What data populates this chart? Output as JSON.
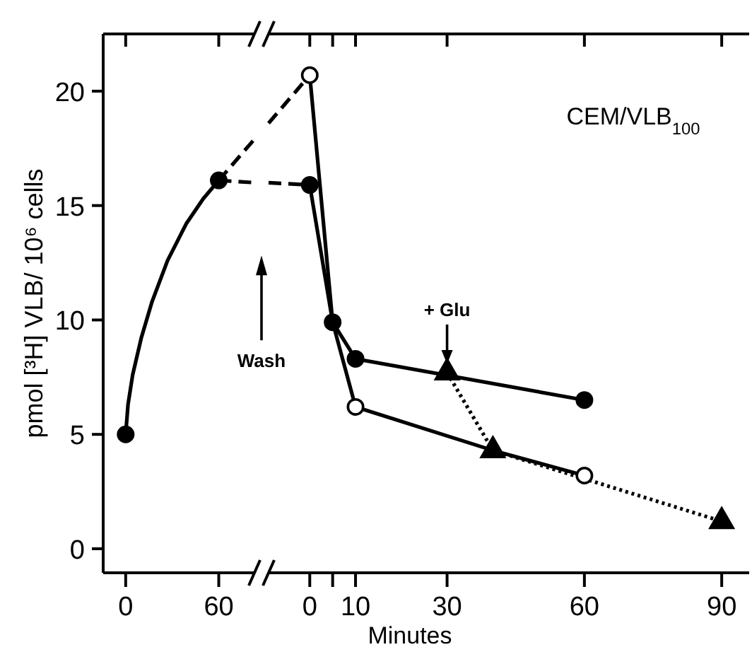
{
  "chart_data": [
    {
      "type": "line",
      "ylabel": "pmol [³H] VLB/ 10⁶ cells",
      "xlim": [
        -14.5,
        83
      ],
      "ylim": [
        -1.05,
        22.5
      ],
      "xticks": [
        0,
        60
      ],
      "yticks": [
        0,
        5,
        10,
        15,
        20
      ],
      "series": [
        {
          "color": "#000000",
          "marker": "none",
          "line_style": "solid",
          "x": [
            0,
            1.5,
            4.5,
            10,
            17,
            27,
            39,
            50,
            60
          ],
          "values": [
            5,
            6.3,
            7.6,
            9.2,
            10.8,
            12.6,
            14.2,
            15.3,
            16.1
          ]
        },
        {
          "type": "scatter",
          "color": "#000000",
          "marker": "circle",
          "x": [
            0,
            60
          ],
          "values": [
            5,
            16.1
          ]
        },
        {
          "color": "#000000",
          "line_style": "dashed",
          "x": [
            60,
            83
          ],
          "values": [
            16.1,
            17.9
          ]
        },
        {
          "color": "#000000",
          "line_style": "dashed",
          "x": [
            60,
            83
          ],
          "values": [
            16.1,
            16
          ]
        }
      ],
      "annotations": [
        "Wash"
      ]
    },
    {
      "type": "line",
      "xlabel": "Minutes",
      "title": "CEM/VLB$_{100}$",
      "tick_labels": "x",
      "xlim": [
        -9,
        96
      ],
      "ylim": [
        -1.05,
        22.5
      ],
      "xticks": [
        0,
        {
          "value": 5,
          "label": null
        },
        10,
        30,
        60,
        90
      ],
      "yticks": [
        0,
        5,
        10,
        15,
        20
      ],
      "series": [
        {
          "color": "#000000",
          "line_style": "dashed",
          "x": [
            -9,
            0
          ],
          "values": [
            18.6,
            20.7
          ]
        },
        {
          "color": "#000000",
          "line_style": "dashed",
          "x": [
            -9,
            0
          ],
          "values": [
            16,
            15.9
          ]
        },
        {
          "color": "#000000",
          "marker": "circle",
          "line_style": "solid",
          "x": [
            0,
            5,
            10,
            60
          ],
          "values": [
            15.9,
            9.9,
            8.3,
            6.5
          ]
        },
        {
          "color": "#000000",
          "marker": "none",
          "line_style": "solid",
          "x": [
            0,
            5,
            10,
            40,
            60
          ],
          "values": [
            20.7,
            9.9,
            6.2,
            4.3,
            3.2
          ]
        },
        {
          "type": "scatter",
          "color": "#ffffff",
          "marker": "circle",
          "x": [
            0,
            10,
            60
          ],
          "values": [
            20.7,
            6.2,
            3.2
          ]
        },
        {
          "color": "#000000",
          "marker": "triangle",
          "line_style": "dotted",
          "x": [
            30,
            40,
            90
          ],
          "values": [
            7.7,
            4.3,
            1.2
          ]
        }
      ],
      "annotations": [
        {
          "text": "+ Glu",
          "x": 30,
          "y": 7.7
        }
      ]
    }
  ]
}
